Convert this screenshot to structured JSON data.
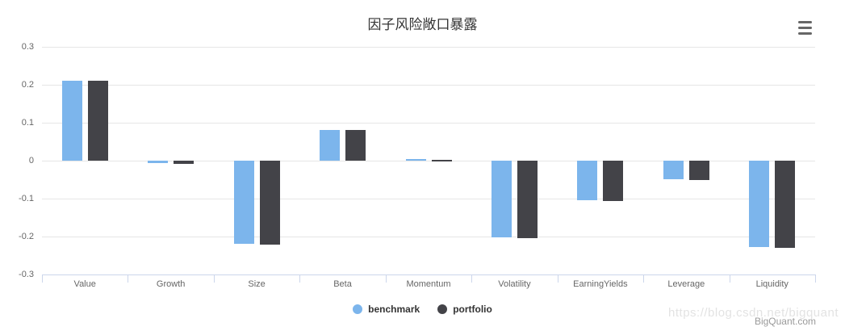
{
  "chart": {
    "title": "因子风险敞口暴露"
  },
  "chart_data": {
    "type": "bar",
    "title": "因子风险敞口暴露",
    "categories": [
      "Value",
      "Growth",
      "Size",
      "Beta",
      "Momentum",
      "Volatility",
      "EarningYields",
      "Leverage",
      "Liquidity"
    ],
    "series": [
      {
        "name": "benchmark",
        "color": "#7cb5ec",
        "values": [
          0.21,
          -0.006,
          -0.22,
          0.08,
          0.004,
          -0.202,
          -0.104,
          -0.049,
          -0.227
        ]
      },
      {
        "name": "portfolio",
        "color": "#434348",
        "values": [
          0.21,
          -0.008,
          -0.222,
          0.08,
          0.003,
          -0.204,
          -0.106,
          -0.051,
          -0.23
        ]
      }
    ],
    "ylim": [
      -0.3,
      0.3
    ],
    "yticks": [
      {
        "value": 0.3,
        "label": "0.3"
      },
      {
        "value": 0.2,
        "label": "0.2"
      },
      {
        "value": 0.1,
        "label": "0.1"
      },
      {
        "value": 0,
        "label": "0"
      },
      {
        "value": -0.1,
        "label": "-0.1"
      },
      {
        "value": -0.2,
        "label": "-0.2"
      },
      {
        "value": -0.3,
        "label": "-0.3"
      }
    ],
    "grid": true,
    "legend_position": "bottom-center",
    "grid_color": "#e6e6e6",
    "axis_color": "#ccd6eb",
    "label_color": "#666666"
  },
  "legend": {
    "items": [
      {
        "label": "benchmark",
        "color": "#7cb5ec"
      },
      {
        "label": "portfolio",
        "color": "#434348"
      }
    ]
  },
  "watermark": {
    "url_text": "https://blog.csdn.net/bigquant",
    "site_text": "BigQuant.com"
  }
}
